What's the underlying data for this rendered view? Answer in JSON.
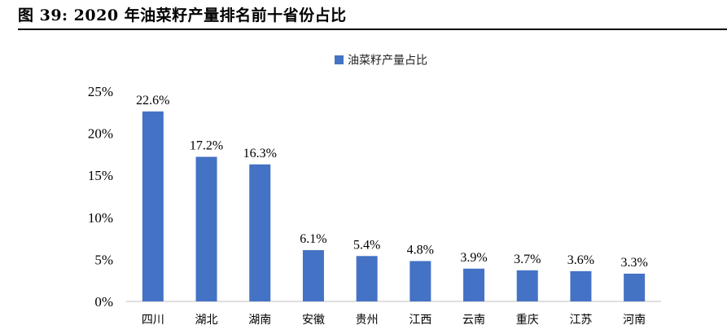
{
  "figure_title": "图 39: 2020 年油菜籽产量排名前十省份占比",
  "colors": {
    "bar": "#4472C4",
    "axis": "#bfbfbf",
    "text": "#000000"
  },
  "chart_data": {
    "type": "bar",
    "title": "",
    "xlabel": "",
    "ylabel": "",
    "legend": {
      "position": "top-center",
      "entries": [
        "油菜籽产量占比"
      ]
    },
    "grid": false,
    "ylim": [
      0,
      25
    ],
    "yticks": [
      0,
      5,
      10,
      15,
      20,
      25
    ],
    "ytick_labels": [
      "0%",
      "5%",
      "10%",
      "15%",
      "20%",
      "25%"
    ],
    "categories": [
      "四川",
      "湖北",
      "湖南",
      "安徽",
      "贵州",
      "江西",
      "云南",
      "重庆",
      "江苏",
      "河南"
    ],
    "series": [
      {
        "name": "油菜籽产量占比",
        "values": [
          22.6,
          17.2,
          16.3,
          6.1,
          5.4,
          4.8,
          3.9,
          3.7,
          3.6,
          3.3
        ],
        "data_labels": [
          "22.6%",
          "17.2%",
          "16.3%",
          "6.1%",
          "5.4%",
          "4.8%",
          "3.9%",
          "3.7%",
          "3.6%",
          "3.3%"
        ]
      }
    ]
  }
}
